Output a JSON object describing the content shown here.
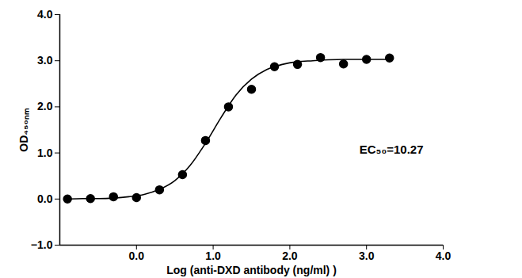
{
  "chart_data": {
    "type": "scatter",
    "x_label": "Log (anti-DXD antibody (ng/ml) )",
    "y_label": "OD₄₅₀ₙₘ",
    "xlim": [
      -1,
      4
    ],
    "xticks": [
      0,
      1,
      2,
      3,
      4
    ],
    "ylim": [
      -1,
      4
    ],
    "yticks": [
      -1,
      0,
      1,
      2,
      3,
      4
    ],
    "annotations": [
      "EC₅₀=10.27"
    ],
    "series": [
      {
        "type": "scatter",
        "color": "#000000",
        "marker": "circle",
        "x": [
          -0.9,
          -0.6,
          -0.3,
          0.0,
          0.3,
          0.6,
          0.9,
          1.2,
          1.5,
          1.8,
          2.1,
          2.4,
          2.7,
          3.0,
          3.3
        ],
        "values": [
          0.0,
          0.01,
          0.05,
          0.03,
          0.2,
          0.53,
          1.27,
          2.0,
          2.38,
          2.87,
          2.92,
          3.07,
          2.93,
          3.03,
          3.06
        ]
      },
      {
        "type": "line",
        "color": "#000000",
        "line_style": "solid",
        "x": [
          -0.9,
          -0.7,
          -0.5,
          -0.3,
          -0.1,
          0.1,
          0.3,
          0.5,
          0.7,
          0.9,
          1.1,
          1.3,
          1.5,
          1.7,
          1.9,
          2.1,
          2.3,
          2.5,
          2.7,
          2.9,
          3.1,
          3.3
        ],
        "values": [
          0.0,
          0.01,
          0.01,
          0.02,
          0.05,
          0.1,
          0.21,
          0.4,
          0.73,
          1.21,
          1.76,
          2.26,
          2.6,
          2.81,
          2.92,
          2.98,
          3.0,
          3.02,
          3.03,
          3.03,
          3.03,
          3.03
        ]
      }
    ]
  }
}
